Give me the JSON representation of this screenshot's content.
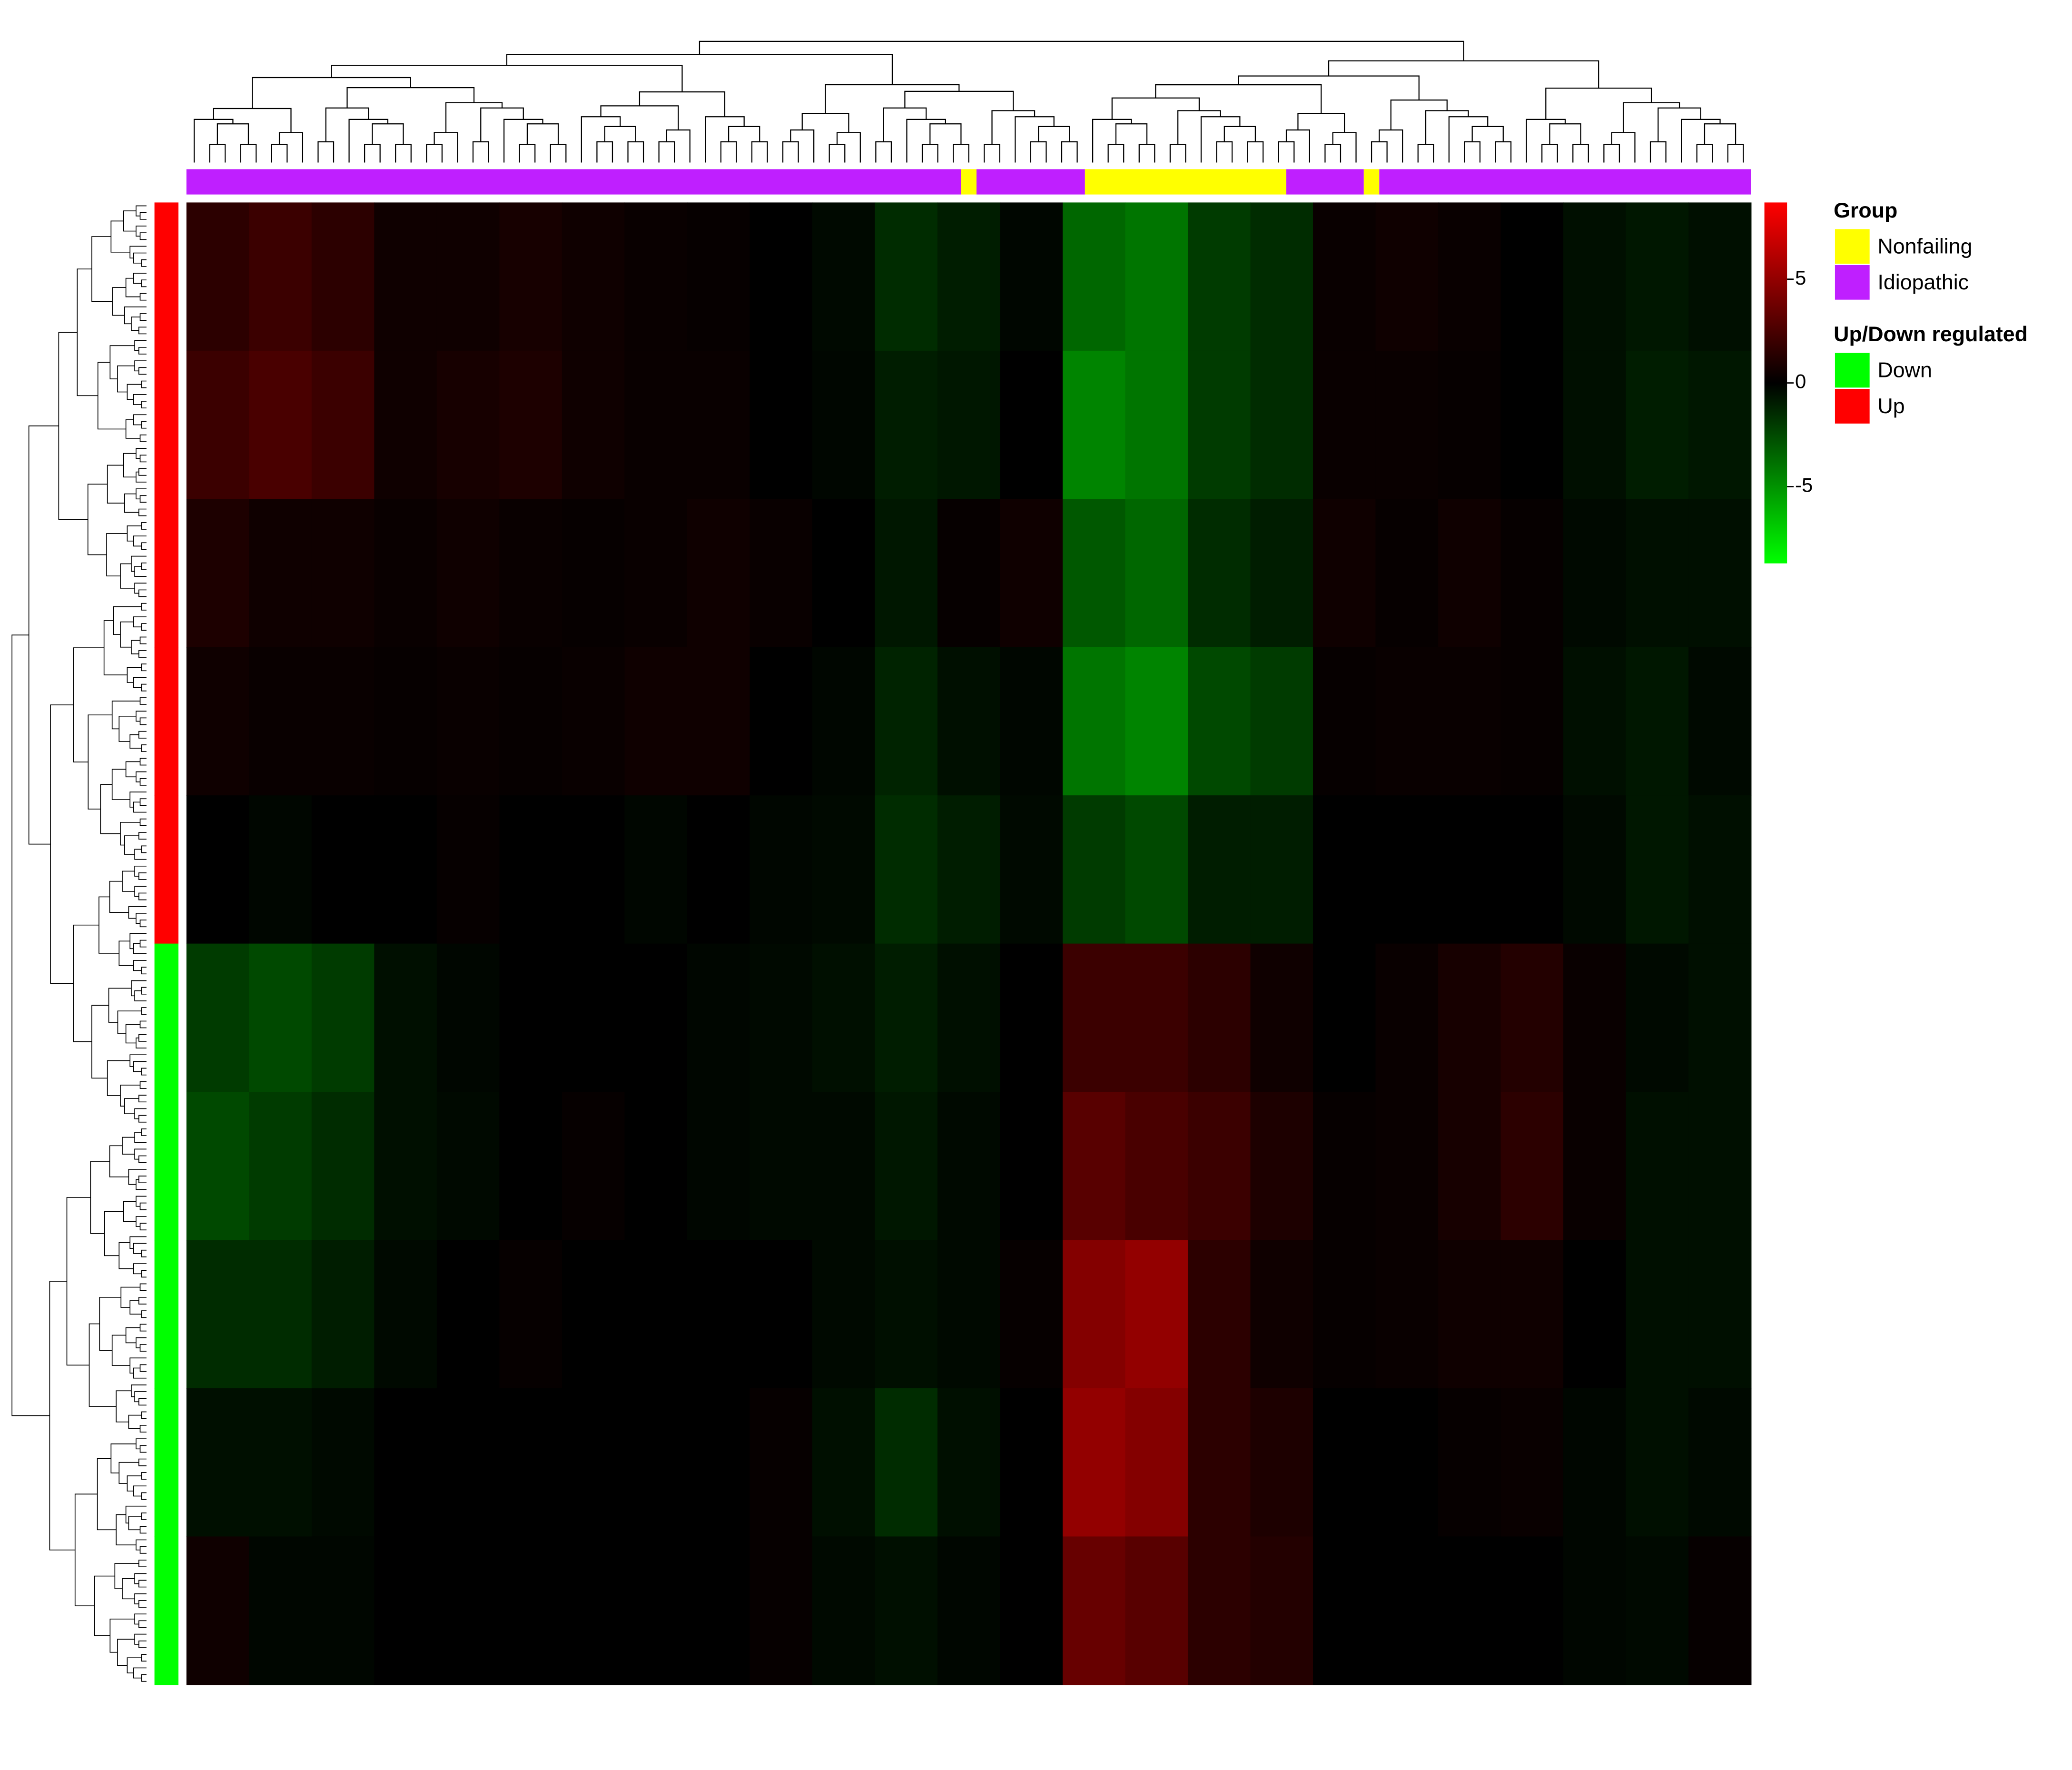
{
  "chart_data": {
    "type": "heatmap",
    "matrix": [
      [
        1.5,
        2,
        1.5,
        0.5,
        0.5,
        0.8,
        0.5,
        0.3,
        0.2,
        0,
        -0.3,
        -1.5,
        -1,
        -0.2,
        -3.5,
        -4,
        -2,
        -1.5,
        0.3,
        0.5,
        0.3,
        0,
        -0.5,
        -0.8,
        -0.5
      ],
      [
        2,
        2.5,
        2,
        0.5,
        0.8,
        1,
        0.5,
        0.3,
        0.3,
        0,
        -0.2,
        -1,
        -0.8,
        0,
        -4.5,
        -4,
        -2,
        -1.5,
        0.3,
        0.3,
        0.2,
        0,
        -0.5,
        -1,
        -0.8
      ],
      [
        1,
        0.5,
        0.5,
        0.3,
        0.5,
        0.3,
        0.2,
        0.3,
        0.5,
        0.3,
        0,
        -0.8,
        0.2,
        0.5,
        -3,
        -3.5,
        -1.5,
        -1,
        0.5,
        0.2,
        0.5,
        0.2,
        -0.3,
        -0.5,
        -0.5
      ],
      [
        0.5,
        0.3,
        0.3,
        0.2,
        0.3,
        0.2,
        0.3,
        0.5,
        0.5,
        0,
        -0.2,
        -1.2,
        -0.5,
        -0.2,
        -4,
        -4.5,
        -2.5,
        -2,
        0.2,
        0.3,
        0.3,
        0.2,
        -0.5,
        -0.8,
        -0.3
      ],
      [
        0,
        -0.2,
        0,
        0,
        0.2,
        0,
        0,
        -0.2,
        0,
        -0.2,
        -0.3,
        -1.5,
        -1,
        -0.3,
        -2,
        -2.5,
        -1,
        -1,
        0,
        0,
        0,
        0,
        -0.3,
        -0.8,
        -0.5
      ],
      [
        -2,
        -2.5,
        -2,
        -0.5,
        -0.2,
        0,
        0,
        0,
        -0.2,
        -0.3,
        -0.5,
        -1,
        -0.5,
        0,
        2,
        2,
        1.5,
        0.5,
        0,
        0.3,
        0.8,
        1.2,
        0.3,
        -0.3,
        -0.5
      ],
      [
        -2.5,
        -2,
        -1.5,
        -0.5,
        -0.3,
        0,
        0.2,
        0,
        -0.2,
        -0.3,
        -0.3,
        -0.8,
        -0.3,
        0,
        3,
        2.5,
        2,
        1,
        0.2,
        0.3,
        0.8,
        1.5,
        0.3,
        -0.5,
        -0.5
      ],
      [
        -1.5,
        -1.5,
        -1,
        -0.3,
        0,
        0.2,
        0,
        0,
        0,
        0,
        -0.3,
        -0.5,
        -0.3,
        0.2,
        4.5,
        5,
        1.5,
        0.5,
        0.2,
        0.3,
        0.5,
        0.5,
        0,
        -0.5,
        -0.5
      ],
      [
        -0.5,
        -0.5,
        -0.3,
        0,
        0,
        0,
        0,
        0,
        0,
        0.2,
        -0.5,
        -1.5,
        -0.5,
        0,
        5,
        4.5,
        1.5,
        1,
        0,
        0,
        0.2,
        0.3,
        -0.2,
        -0.5,
        -0.3
      ],
      [
        0.5,
        -0.2,
        -0.2,
        0,
        0,
        0,
        0,
        0,
        0,
        0.2,
        -0.3,
        -0.5,
        -0.2,
        0,
        3.5,
        3,
        1.5,
        1.2,
        0,
        0,
        0,
        0,
        -0.2,
        -0.3,
        0.2
      ]
    ],
    "colorbar": {
      "lim": [
        -8.7,
        8.7
      ],
      "ticks": [
        -5,
        0,
        5
      ],
      "colors": [
        "#00ff00",
        "#000000",
        "#ff0000"
      ]
    },
    "column_annotation": {
      "title": "Group",
      "legend": [
        {
          "name": "Nonfailing",
          "color": "#ffff00"
        },
        {
          "name": "Idiopathic",
          "color": "#bf1fff"
        }
      ],
      "segments": [
        {
          "group": 1,
          "n": 50
        },
        {
          "group": 0,
          "n": 1
        },
        {
          "group": 1,
          "n": 7
        },
        {
          "group": 0,
          "n": 13
        },
        {
          "group": 1,
          "n": 5
        },
        {
          "group": 0,
          "n": 1
        },
        {
          "group": 1,
          "n": 24
        }
      ]
    },
    "row_annotation": {
      "title": "Up/Down regulated",
      "legend": [
        {
          "name": "Down",
          "color": "#00ff00"
        },
        {
          "name": "Up",
          "color": "#ff0000"
        }
      ],
      "rows": [
        1,
        1,
        1,
        1,
        1,
        0,
        0,
        0,
        0,
        0
      ]
    }
  }
}
